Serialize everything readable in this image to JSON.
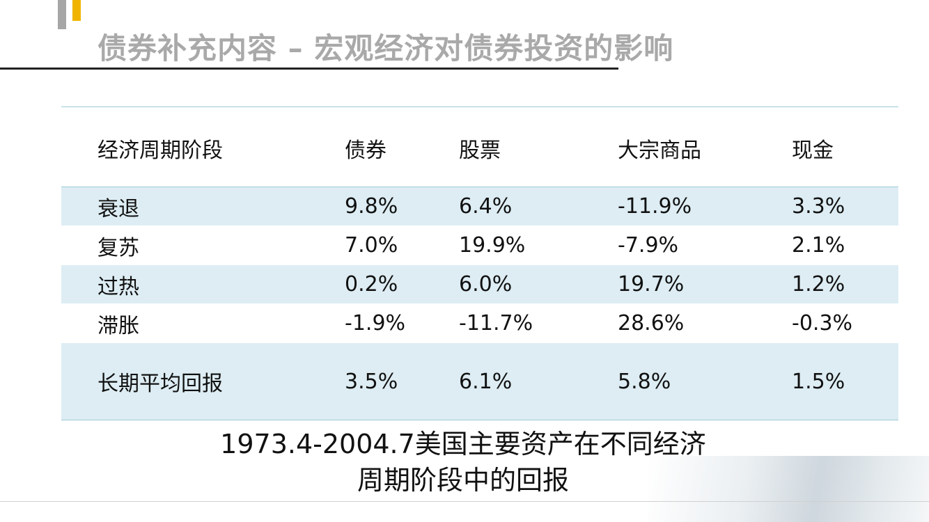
{
  "title": "债券补充内容 – 宏观经济对债券投资的影响",
  "table": {
    "headers": [
      "经济周期阶段",
      "债券",
      "股票",
      "大宗商品",
      "现金"
    ],
    "rows": [
      [
        "衰退",
        "9.8%",
        "6.4%",
        "-11.9%",
        "3.3%"
      ],
      [
        "复苏",
        "7.0%",
        "19.9%",
        "-7.9%",
        "2.1%"
      ],
      [
        "过热",
        "0.2%",
        "6.0%",
        "19.7%",
        "1.2%"
      ],
      [
        "滞胀",
        "-1.9%",
        "-11.7%",
        "28.6%",
        "-0.3%"
      ]
    ],
    "average": [
      "长期平均回报",
      "3.5%",
      "6.1%",
      "5.8%",
      "1.5%"
    ]
  },
  "caption": {
    "line1": "1973.4-2004.7美国主要资产在不同经济",
    "line2": "周期阶段中的回报"
  },
  "colors": {
    "title": "#a9a9a9",
    "accent_yellow": "#f0b400",
    "accent_gray": "#a6a6a6",
    "row_shade": "#ddedf3",
    "table_rule": "#9ccad8"
  }
}
